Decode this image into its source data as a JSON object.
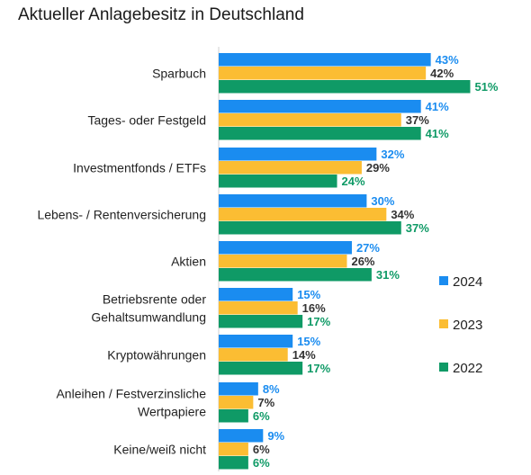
{
  "title": "Aktueller Anlagebesitz in Deutschland",
  "colors": {
    "2024": "#1a8cf0",
    "2023": "#fbbd33",
    "2022": "#0f9a66"
  },
  "chart_data": {
    "type": "bar",
    "orientation": "horizontal",
    "title": "Aktueller Anlagebesitz in Deutschland",
    "categories": [
      [
        "Sparbuch"
      ],
      [
        "Tages- oder Festgeld"
      ],
      [
        "Investmentfonds / ETFs"
      ],
      [
        "Lebens- / Rentenversicherung"
      ],
      [
        "Aktien"
      ],
      [
        "Betriebsrente oder",
        "Gehaltsumwandlung"
      ],
      [
        "Kryptowährungen"
      ],
      [
        "Anleihen / Festverzinsliche",
        "Wertpapiere"
      ],
      [
        "Keine/weiß nicht"
      ]
    ],
    "series": [
      {
        "name": "2024",
        "values": [
          43,
          41,
          32,
          30,
          27,
          15,
          15,
          8,
          9
        ]
      },
      {
        "name": "2023",
        "values": [
          42,
          37,
          29,
          34,
          26,
          16,
          14,
          7,
          6
        ]
      },
      {
        "name": "2022",
        "values": [
          51,
          41,
          24,
          37,
          31,
          17,
          17,
          6,
          6
        ]
      }
    ],
    "value_suffix": "%",
    "legend": {
      "placement": "right",
      "entries": [
        "2024",
        "2023",
        "2022"
      ]
    },
    "grid": false,
    "xlim": [
      0,
      60
    ]
  }
}
